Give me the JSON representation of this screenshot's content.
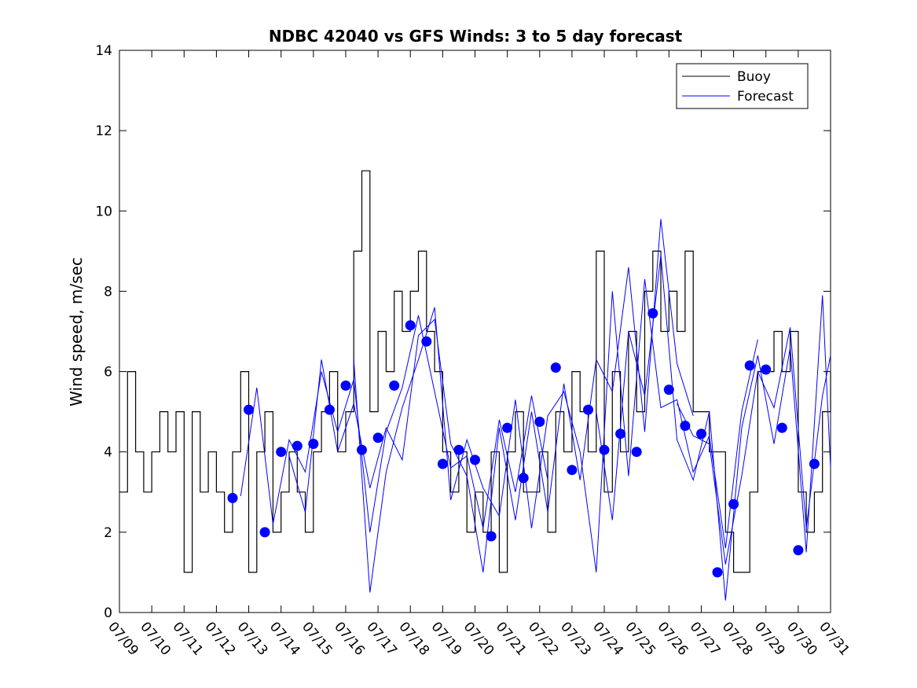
{
  "chart_data": {
    "type": "line",
    "title": "NDBC 42040 vs GFS Winds: 3 to 5 day forecast",
    "xlabel": "",
    "ylabel": "Wind speed, m/sec",
    "xlim": [
      "07/09",
      "07/31"
    ],
    "ylim": [
      0,
      14
    ],
    "x_ticks": [
      "07/09",
      "07/10",
      "07/11",
      "07/12",
      "07/13",
      "07/14",
      "07/15",
      "07/16",
      "07/17",
      "07/18",
      "07/19",
      "07/20",
      "07/21",
      "07/22",
      "07/23",
      "07/24",
      "07/25",
      "07/26",
      "07/27",
      "07/28",
      "07/29",
      "07/30",
      "07/31"
    ],
    "y_ticks": [
      0,
      2,
      4,
      6,
      8,
      10,
      12,
      14
    ],
    "legend": {
      "position": "top-right",
      "entries": [
        "Buoy",
        "Forecast"
      ]
    },
    "colors": {
      "buoy": "#000000",
      "forecast": "#0000ff",
      "markers": "#0000ff"
    },
    "series": [
      {
        "name": "Buoy",
        "x": [
          "07/09 00:00",
          "07/09 06:00",
          "07/09 12:00",
          "07/09 18:00",
          "07/10 00:00",
          "07/10 06:00",
          "07/10 12:00",
          "07/10 18:00",
          "07/11 00:00",
          "07/11 06:00",
          "07/11 12:00",
          "07/11 18:00",
          "07/12 00:00",
          "07/12 06:00",
          "07/12 12:00",
          "07/12 18:00",
          "07/13 00:00",
          "07/13 06:00",
          "07/13 12:00",
          "07/13 18:00",
          "07/14 00:00",
          "07/14 06:00",
          "07/14 12:00",
          "07/14 18:00",
          "07/15 00:00",
          "07/15 06:00",
          "07/15 12:00",
          "07/15 18:00",
          "07/16 00:00",
          "07/16 06:00",
          "07/16 12:00",
          "07/16 18:00",
          "07/17 00:00",
          "07/17 06:00",
          "07/17 12:00",
          "07/17 18:00",
          "07/18 00:00",
          "07/18 06:00",
          "07/18 12:00",
          "07/18 18:00",
          "07/19 00:00",
          "07/19 06:00",
          "07/19 12:00",
          "07/19 18:00",
          "07/20 00:00",
          "07/20 06:00",
          "07/20 12:00",
          "07/20 18:00",
          "07/21 00:00",
          "07/21 06:00",
          "07/21 12:00",
          "07/21 18:00",
          "07/22 00:00",
          "07/22 06:00",
          "07/22 12:00",
          "07/22 18:00",
          "07/23 00:00",
          "07/23 06:00",
          "07/23 12:00",
          "07/23 18:00",
          "07/24 00:00",
          "07/24 06:00",
          "07/24 12:00",
          "07/24 18:00",
          "07/25 00:00",
          "07/25 06:00",
          "07/25 12:00",
          "07/25 18:00",
          "07/26 00:00",
          "07/26 06:00",
          "07/26 12:00",
          "07/26 18:00",
          "07/27 00:00",
          "07/27 06:00",
          "07/27 12:00",
          "07/27 18:00",
          "07/28 00:00",
          "07/28 06:00",
          "07/28 12:00",
          "07/28 18:00",
          "07/29 00:00",
          "07/29 06:00",
          "07/29 12:00",
          "07/29 18:00",
          "07/30 00:00",
          "07/30 06:00",
          "07/30 12:00",
          "07/30 18:00",
          "07/31 00:00"
        ],
        "values": [
          3,
          6,
          4,
          3,
          4,
          5,
          4,
          5,
          1,
          5,
          3,
          4,
          3,
          2,
          4,
          6,
          1,
          4,
          5,
          2,
          3,
          4,
          3,
          2,
          4,
          5,
          6,
          4,
          5,
          9,
          11,
          5,
          7,
          6,
          8,
          7,
          8,
          9,
          7,
          6,
          4,
          3,
          4,
          2,
          3,
          2,
          4,
          1,
          4,
          5,
          3,
          3,
          4,
          2,
          5,
          4,
          6,
          5,
          4,
          9,
          3,
          6,
          4,
          7,
          5,
          8,
          9,
          7,
          8,
          7,
          9,
          5,
          5,
          4,
          4,
          2,
          1,
          1,
          3,
          6,
          6,
          7,
          6,
          7,
          3,
          2,
          3,
          5,
          6
        ]
      },
      {
        "name": "Forecast",
        "runs": [
          {
            "x": [
              "07/12 18:00",
              "07/13 06:00",
              "07/13 18:00",
              "07/14 06:00",
              "07/14 18:00",
              "07/15 06:00",
              "07/15 18:00",
              "07/16 06:00",
              "07/16 18:00",
              "07/17 06:00",
              "07/17 18:00",
              "07/18 06:00",
              "07/18 18:00",
              "07/19 06:00",
              "07/19 18:00",
              "07/20 06:00",
              "07/20 18:00",
              "07/21 06:00",
              "07/21 18:00",
              "07/22 06:00"
            ],
            "values": [
              2.9,
              5.6,
              2.2,
              4.3,
              3.5,
              6.0,
              4.5,
              5.8,
              2.0,
              4.5,
              5.6,
              7.4,
              5.5,
              3.6,
              3.9,
              2.1,
              4.8,
              3.0,
              5.4,
              3.3
            ]
          },
          {
            "x": [
              "07/14 06:00",
              "07/14 18:00",
              "07/15 06:00",
              "07/15 18:00",
              "07/16 06:00",
              "07/16 18:00",
              "07/17 06:00",
              "07/17 18:00",
              "07/18 06:00",
              "07/18 18:00",
              "07/19 06:00",
              "07/19 18:00",
              "07/20 06:00",
              "07/20 18:00",
              "07/21 06:00",
              "07/21 18:00",
              "07/22 06:00",
              "07/22 18:00",
              "07/23 06:00",
              "07/23 18:00",
              "07/24 06:00",
              "07/24 18:00",
              "07/25 06:00",
              "07/25 18:00",
              "07/26 06:00",
              "07/26 18:00"
            ],
            "values": [
              3.9,
              2.5,
              6.3,
              4.0,
              5.2,
              3.1,
              4.6,
              3.8,
              6.9,
              7.3,
              4.2,
              3.4,
              1.0,
              4.6,
              2.3,
              5.0,
              2.5,
              5.7,
              3.3,
              6.3,
              5.5,
              8.6,
              4.5,
              9.8,
              6.2,
              4.9
            ]
          },
          {
            "x": [
              "07/16 06:00",
              "07/16 18:00",
              "07/17 06:00",
              "07/17 18:00",
              "07/18 06:00",
              "07/18 18:00",
              "07/19 06:00",
              "07/19 18:00",
              "07/20 06:00",
              "07/20 18:00",
              "07/21 06:00",
              "07/21 18:00",
              "07/22 06:00",
              "07/22 18:00",
              "07/23 06:00",
              "07/23 18:00",
              "07/24 06:00",
              "07/24 18:00",
              "07/25 06:00",
              "07/25 18:00",
              "07/26 06:00",
              "07/26 18:00",
              "07/27 06:00",
              "07/27 18:00",
              "07/28 06:00",
              "07/28 18:00"
            ],
            "values": [
              6.3,
              0.5,
              3.5,
              5.1,
              6.3,
              7.6,
              2.8,
              4.3,
              3.1,
              2.4,
              5.3,
              2.1,
              4.9,
              5.5,
              4.0,
              1.0,
              8.0,
              3.4,
              8.3,
              5.1,
              5.3,
              3.5,
              4.4,
              1.6,
              5.0,
              6.8
            ]
          },
          {
            "x": [
              "07/23 18:00",
              "07/24 06:00",
              "07/24 18:00",
              "07/25 06:00",
              "07/25 18:00",
              "07/26 06:00",
              "07/26 18:00",
              "07/27 06:00",
              "07/27 18:00",
              "07/28 06:00",
              "07/28 18:00",
              "07/29 06:00",
              "07/29 18:00",
              "07/30 06:00",
              "07/30 18:00",
              "07/31 00:00"
            ],
            "values": [
              5.0,
              2.3,
              7.0,
              5.4,
              8.9,
              4.3,
              3.3,
              5.0,
              0.3,
              4.6,
              6.4,
              4.2,
              6.6,
              1.5,
              7.9,
              3.6
            ]
          },
          {
            "x": [
              "07/26 06:00",
              "07/26 18:00",
              "07/27 06:00",
              "07/27 18:00",
              "07/28 06:00",
              "07/28 18:00",
              "07/29 06:00",
              "07/29 18:00",
              "07/30 06:00",
              "07/30 18:00",
              "07/31 00:00"
            ],
            "values": [
              5.2,
              4.4,
              4.2,
              1.2,
              3.4,
              6.0,
              5.1,
              7.1,
              2.1,
              5.4,
              6.4
            ]
          }
        ]
      },
      {
        "name": "daily-mean-markers",
        "x": [
          "07/12 12:00",
          "07/13 00:00",
          "07/13 12:00",
          "07/14 00:00",
          "07/14 12:00",
          "07/15 00:00",
          "07/15 12:00",
          "07/16 00:00",
          "07/16 12:00",
          "07/17 00:00",
          "07/17 12:00",
          "07/18 00:00",
          "07/18 12:00",
          "07/19 00:00",
          "07/19 12:00",
          "07/20 00:00",
          "07/20 12:00",
          "07/21 00:00",
          "07/21 12:00",
          "07/22 00:00",
          "07/22 12:00",
          "07/23 00:00",
          "07/23 12:00",
          "07/24 00:00",
          "07/24 12:00",
          "07/25 00:00",
          "07/25 12:00",
          "07/26 00:00",
          "07/26 12:00",
          "07/27 00:00",
          "07/27 12:00",
          "07/28 00:00",
          "07/28 12:00",
          "07/29 00:00",
          "07/29 12:00",
          "07/30 00:00",
          "07/30 12:00"
        ],
        "values": [
          2.85,
          5.05,
          2.0,
          4.0,
          4.15,
          4.2,
          5.05,
          5.65,
          4.05,
          4.35,
          5.65,
          7.15,
          6.75,
          3.7,
          4.05,
          3.8,
          1.9,
          4.6,
          3.35,
          4.75,
          6.1,
          3.55,
          5.05,
          4.05,
          4.45,
          4.0,
          7.45,
          5.55,
          4.65,
          4.45,
          1.0,
          2.7,
          6.15,
          6.05,
          4.6,
          1.55,
          3.7
        ]
      }
    ]
  }
}
